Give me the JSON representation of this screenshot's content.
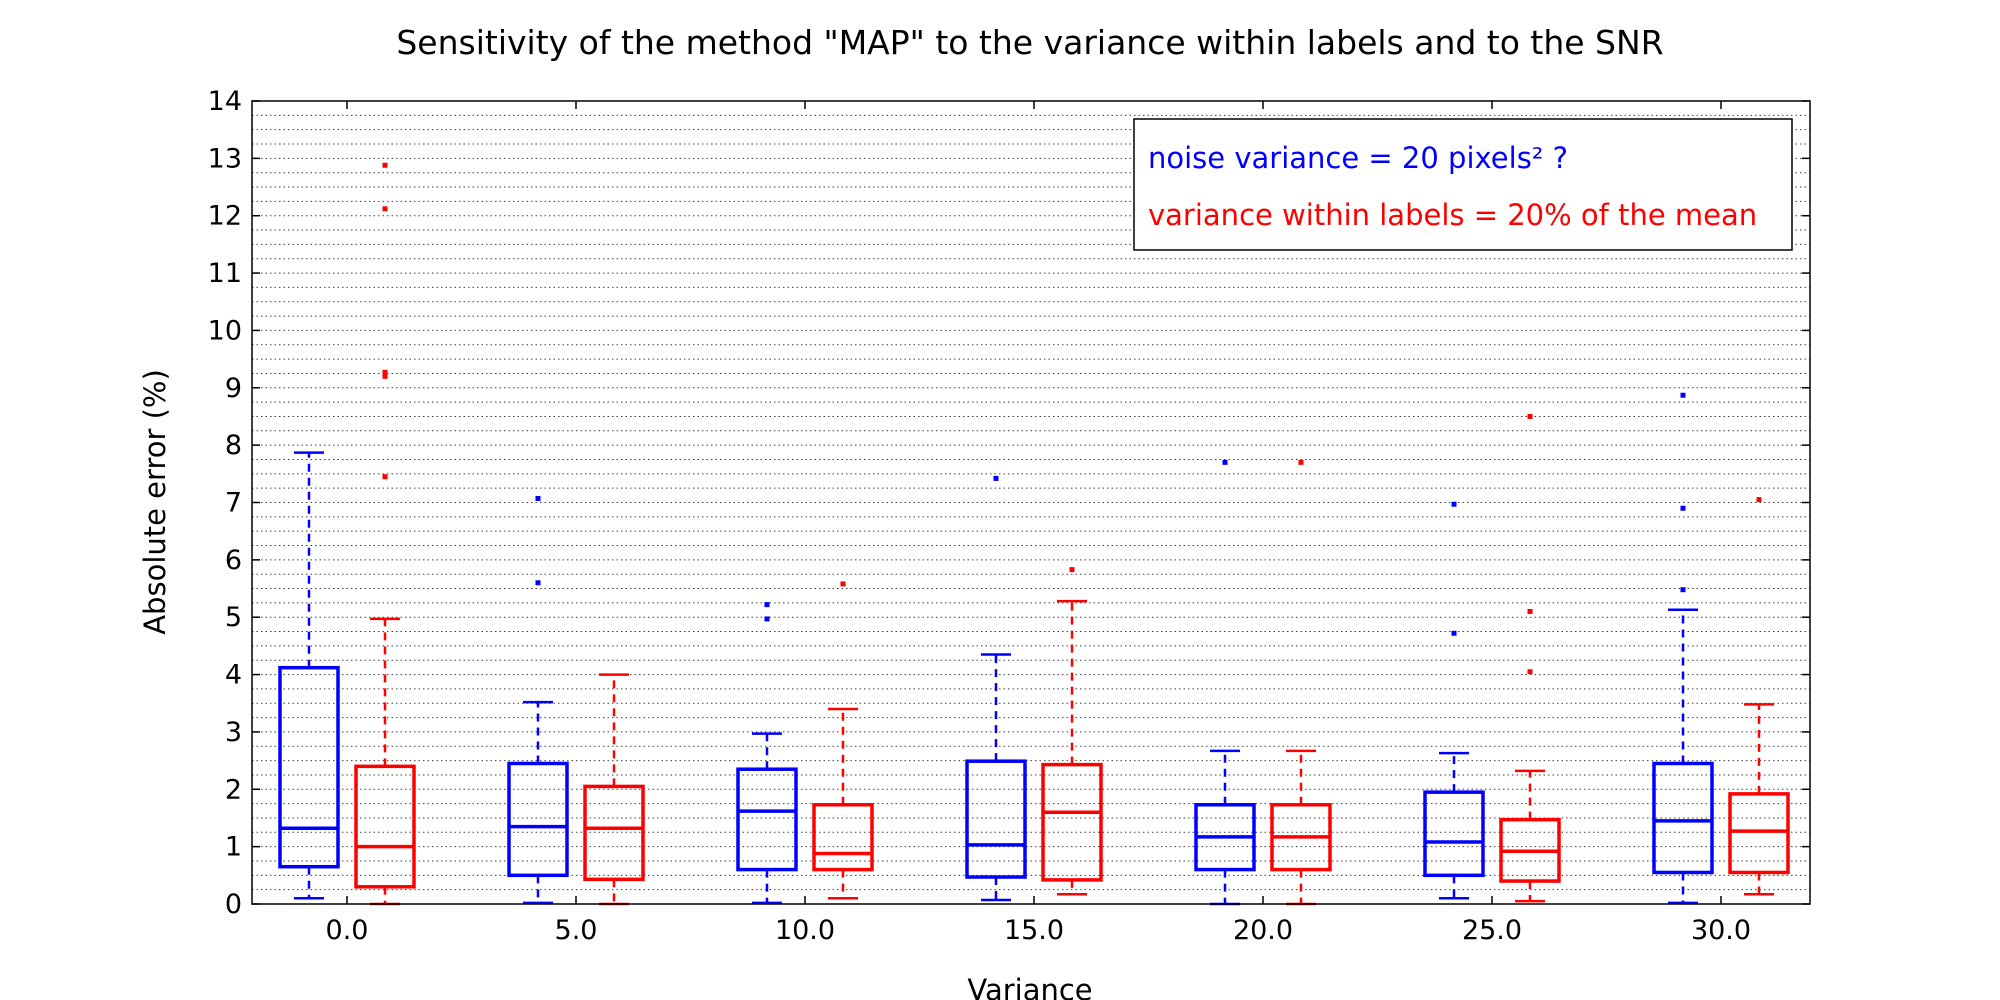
{
  "chart_data": {
    "type": "box",
    "title": "Sensitivity of the method \"MAP\" to the variance within labels and to the SNR",
    "xlabel": "Variance",
    "ylabel": "Absolute error (%)",
    "ylim": [
      0,
      14
    ],
    "yticks": [
      "0",
      "1",
      "2",
      "3",
      "4",
      "5",
      "6",
      "7",
      "8",
      "9",
      "10",
      "11",
      "12",
      "13",
      "14"
    ],
    "categories": [
      "0.0",
      "5.0",
      "10.0",
      "15.0",
      "20.0",
      "25.0",
      "30.0"
    ],
    "grid": "horizontal dotted, every 0.25",
    "legend_position": "top-right",
    "legend": [
      {
        "text": "noise variance = 20 pixels² ?",
        "color": "#0000ff"
      },
      {
        "text": "variance within labels = 20% of the mean",
        "color": "#ff0000"
      }
    ],
    "series": [
      {
        "color": "#0000ff",
        "boxes": [
          {
            "min": 0.1,
            "q1": 0.65,
            "median": 1.32,
            "q3": 4.12,
            "max": 7.87,
            "outliers": []
          },
          {
            "min": 0.02,
            "q1": 0.5,
            "median": 1.35,
            "q3": 2.45,
            "max": 3.52,
            "outliers": [
              5.6,
              7.07
            ]
          },
          {
            "min": 0.02,
            "q1": 0.6,
            "median": 1.62,
            "q3": 2.35,
            "max": 2.97,
            "outliers": [
              4.97,
              5.22
            ]
          },
          {
            "min": 0.07,
            "q1": 0.47,
            "median": 1.03,
            "q3": 2.49,
            "max": 4.35,
            "outliers": [
              7.42
            ]
          },
          {
            "min": 0.0,
            "q1": 0.6,
            "median": 1.17,
            "q3": 1.73,
            "max": 2.67,
            "outliers": [
              7.7
            ]
          },
          {
            "min": 0.1,
            "q1": 0.5,
            "median": 1.08,
            "q3": 1.95,
            "max": 2.63,
            "outliers": [
              4.72,
              6.97
            ]
          },
          {
            "min": 0.02,
            "q1": 0.55,
            "median": 1.45,
            "q3": 2.45,
            "max": 5.13,
            "outliers": [
              5.48,
              6.9,
              8.87
            ]
          }
        ]
      },
      {
        "color": "#ff0000",
        "boxes": [
          {
            "min": 0.0,
            "q1": 0.3,
            "median": 1.0,
            "q3": 2.4,
            "max": 4.97,
            "outliers": [
              7.45,
              9.2,
              9.27,
              12.12,
              12.88
            ]
          },
          {
            "min": 0.0,
            "q1": 0.43,
            "median": 1.32,
            "q3": 2.05,
            "max": 4.0,
            "outliers": []
          },
          {
            "min": 0.1,
            "q1": 0.6,
            "median": 0.88,
            "q3": 1.73,
            "max": 3.4,
            "outliers": [
              5.58
            ]
          },
          {
            "min": 0.17,
            "q1": 0.42,
            "median": 1.6,
            "q3": 2.43,
            "max": 5.28,
            "outliers": [
              5.83
            ]
          },
          {
            "min": 0.0,
            "q1": 0.6,
            "median": 1.17,
            "q3": 1.73,
            "max": 2.67,
            "outliers": [
              7.7
            ]
          },
          {
            "min": 0.05,
            "q1": 0.4,
            "median": 0.92,
            "q3": 1.47,
            "max": 2.32,
            "outliers": [
              4.05,
              5.1,
              8.5
            ]
          },
          {
            "min": 0.17,
            "q1": 0.55,
            "median": 1.27,
            "q3": 1.92,
            "max": 3.48,
            "outliers": [
              7.05
            ]
          }
        ]
      }
    ]
  }
}
